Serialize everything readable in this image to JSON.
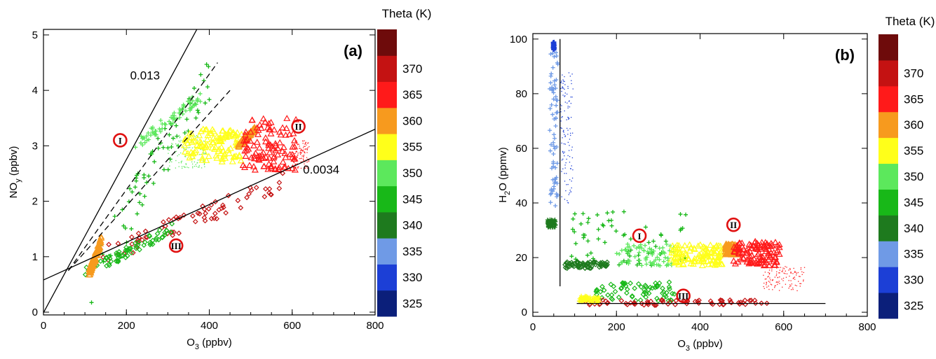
{
  "colorbar": {
    "title": "Theta (K)",
    "bands": [
      {
        "label": "325",
        "color": "#0b1f7a"
      },
      {
        "label": "330",
        "color": "#1c3fd6"
      },
      {
        "label": "335",
        "color": "#6f9ae6"
      },
      {
        "label": "340",
        "color": "#1e7a1e"
      },
      {
        "label": "345",
        "color": "#18b818"
      },
      {
        "label": "350",
        "color": "#5ce85c"
      },
      {
        "label": "355",
        "color": "#ffff1a"
      },
      {
        "label": "360",
        "color": "#f79a1e"
      },
      {
        "label": "365",
        "color": "#ff1a1a"
      },
      {
        "label": "370",
        "color": "#c41212"
      },
      {
        "label": "",
        "color": "#6e0b0b"
      }
    ]
  },
  "chart_data": [
    {
      "type": "scatter",
      "panel_label": "(a)",
      "xlabel_main": "O",
      "xlabel_sub": "3",
      "xlabel_rest": " (ppbv)",
      "ylabel_main": "NO",
      "ylabel_sub": "y",
      "ylabel_rest": " (ppbv)",
      "xlim": [
        0,
        800
      ],
      "ylim": [
        -0.05,
        5.1
      ],
      "xticks": [
        "0",
        "200",
        "400",
        "600",
        "800"
      ],
      "yticks": [
        "0",
        "1",
        "2",
        "3",
        "4",
        "5"
      ],
      "annotations": [
        {
          "text": "0.013",
          "x": 245,
          "y": 4.2
        },
        {
          "text": "0.0034",
          "x": 670,
          "y": 2.5
        }
      ],
      "regime_markers": [
        {
          "label": "I",
          "x": 185,
          "y": 3.1
        },
        {
          "label": "II",
          "x": 615,
          "y": 3.35
        },
        {
          "label": "III",
          "x": 320,
          "y": 1.2
        }
      ],
      "lines": [
        {
          "style": "solid",
          "x": [
            0,
            370
          ],
          "y": [
            -0.01,
            5.1
          ]
        },
        {
          "style": "dashed",
          "x": [
            60,
            420
          ],
          "y": [
            0.75,
            4.5
          ]
        },
        {
          "style": "dashed",
          "x": [
            60,
            450
          ],
          "y": [
            0.75,
            4.0
          ]
        },
        {
          "style": "solid",
          "x": [
            0,
            800
          ],
          "y": [
            0.58,
            3.3
          ]
        }
      ],
      "series": [
        {
          "marker": "plus",
          "theta": 345,
          "x": [
            110,
            400
          ],
          "y": [
            0.55,
            4.3
          ]
        },
        {
          "marker": "plus",
          "theta": 350,
          "x": [
            220,
            380
          ],
          "y": [
            3.0,
            3.9
          ]
        },
        {
          "marker": "dot",
          "theta": 350,
          "x": [
            300,
            390
          ],
          "y": [
            2.6,
            3.2
          ]
        },
        {
          "marker": "triangle",
          "theta": 355,
          "x": [
            340,
            480
          ],
          "y": [
            2.7,
            3.3
          ]
        },
        {
          "marker": "triangle",
          "theta": 360,
          "x": [
            470,
            510
          ],
          "y": [
            3.0,
            3.3
          ]
        },
        {
          "marker": "triangle",
          "theta": 365,
          "x": [
            480,
            610
          ],
          "y": [
            2.55,
            3.5
          ]
        },
        {
          "marker": "dot",
          "theta": 365,
          "x": [
            600,
            640
          ],
          "y": [
            2.6,
            3.1
          ]
        },
        {
          "marker": "diamond",
          "theta": 370,
          "x": [
            140,
            580
          ],
          "y": [
            1.0,
            2.35
          ]
        },
        {
          "marker": "diamond",
          "theta": 345,
          "x": [
            100,
            310
          ],
          "y": [
            0.7,
            1.5
          ]
        },
        {
          "marker": "triangle",
          "theta": 358,
          "x": [
            110,
            140
          ],
          "y": [
            0.7,
            1.3
          ]
        }
      ]
    },
    {
      "type": "scatter",
      "panel_label": "(b)",
      "xlabel_main": "O",
      "xlabel_sub": "3",
      "xlabel_rest": " (ppbv)",
      "ylabel_main": "H",
      "ylabel_sub": "2",
      "ylabel_rest": "O (ppmv)",
      "xlim": [
        0,
        800
      ],
      "ylim": [
        -1.5,
        102
      ],
      "xticks": [
        "0",
        "200",
        "400",
        "600",
        "800"
      ],
      "yticks": [
        "0",
        "20",
        "40",
        "60",
        "80",
        "100"
      ],
      "regime_markers": [
        {
          "label": "I",
          "x": 255,
          "y": 28
        },
        {
          "label": "II",
          "x": 480,
          "y": 32
        },
        {
          "label": "III",
          "x": 360,
          "y": 6
        }
      ],
      "lines": [
        {
          "style": "solid",
          "x": [
            65,
            65
          ],
          "y": [
            9.5,
            100
          ]
        },
        {
          "style": "solid",
          "x": [
            105,
            700
          ],
          "y": [
            3.2,
            3.2
          ]
        }
      ],
      "series": [
        {
          "marker": "plus",
          "theta": 335,
          "x": [
            40,
            60
          ],
          "y": [
            38,
            97
          ]
        },
        {
          "marker": "plus",
          "theta": 332,
          "x": [
            48,
            52
          ],
          "y": [
            96,
            99
          ]
        },
        {
          "marker": "dot",
          "theta": 332,
          "x": [
            65,
            95
          ],
          "y": [
            40,
            88
          ]
        },
        {
          "marker": "plus",
          "theta": 340,
          "x": [
            35,
            55
          ],
          "y": [
            31,
            34
          ]
        },
        {
          "marker": "plus",
          "theta": 345,
          "x": [
            90,
            380
          ],
          "y": [
            17,
            37
          ]
        },
        {
          "marker": "plus",
          "theta": 350,
          "x": [
            200,
            340
          ],
          "y": [
            17,
            25
          ]
        },
        {
          "marker": "triangle",
          "theta": 355,
          "x": [
            330,
            460
          ],
          "y": [
            17,
            25
          ]
        },
        {
          "marker": "triangle",
          "theta": 360,
          "x": [
            460,
            490
          ],
          "y": [
            21,
            25
          ]
        },
        {
          "marker": "triangle",
          "theta": 365,
          "x": [
            480,
            590
          ],
          "y": [
            17,
            26
          ]
        },
        {
          "marker": "dot",
          "theta": 365,
          "x": [
            550,
            650
          ],
          "y": [
            8,
            17
          ]
        },
        {
          "marker": "diamond",
          "theta": 340,
          "x": [
            75,
            180
          ],
          "y": [
            16,
            18.5
          ]
        },
        {
          "marker": "diamond",
          "theta": 345,
          "x": [
            150,
            340
          ],
          "y": [
            4,
            11
          ]
        },
        {
          "marker": "diamond",
          "theta": 370,
          "x": [
            120,
            560
          ],
          "y": [
            2.5,
            4.5
          ]
        },
        {
          "marker": "plus",
          "theta": 355,
          "x": [
            110,
            160
          ],
          "y": [
            3.5,
            6
          ]
        }
      ]
    }
  ]
}
